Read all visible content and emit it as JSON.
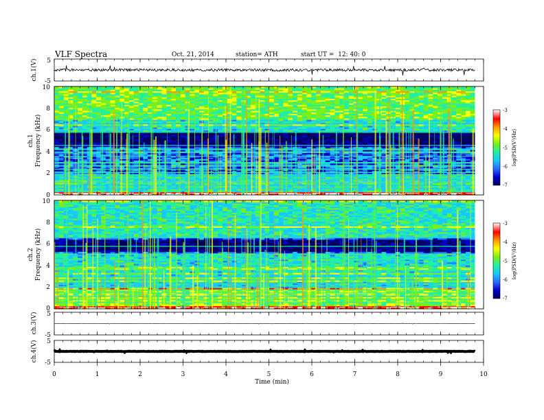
{
  "header": {
    "title": "VLF Spectra",
    "date": "Oct. 21, 2014",
    "station": "station= ATH",
    "start_time": "start UT =  12: 40: 0"
  },
  "x_axis": {
    "label": "Time (min)",
    "ticks": [
      "0",
      "1",
      "2",
      "3",
      "4",
      "5",
      "6",
      "7",
      "8",
      "9",
      "10"
    ]
  },
  "panels": {
    "ch1_wave": {
      "ylabel": "ch.1(V)",
      "ticks": [
        "5",
        "-5"
      ]
    },
    "ch1_spec": {
      "ylabel_top": "ch.1",
      "ylabel": "Frequency (kHz)",
      "ticks": [
        "10",
        "8",
        "6",
        "4",
        "2",
        "0"
      ]
    },
    "ch2_spec": {
      "ylabel_top": "ch.2",
      "ylabel": "Frequency (kHz)",
      "ticks": [
        "10",
        "8",
        "6",
        "4",
        "2",
        "0"
      ]
    },
    "ch3_wave": {
      "ylabel": "ch.3(V)",
      "ticks": [
        "5",
        "-5"
      ]
    },
    "ch4_wave": {
      "ylabel": "ch.4(V)",
      "ticks": [
        "5",
        "-5"
      ]
    }
  },
  "colorbar": {
    "label": "log(PSD(V²/Hz)",
    "ticks": [
      "-3",
      "-4",
      "-5",
      "-6",
      "-7"
    ]
  },
  "chart_data": {
    "type": "heatmap",
    "title": "VLF Spectra",
    "xlabel": "Time (min)",
    "xlim": [
      0,
      10
    ],
    "data_end_min": 9.8,
    "colormap": [
      "#000060",
      "#0000c8",
      "#2a6cff",
      "#19c8ff",
      "#22f0a0",
      "#7af019",
      "#ffff00",
      "#ff9a00",
      "#ff0000",
      "#ffffff"
    ],
    "clim": [
      -7,
      -3
    ],
    "channels": [
      {
        "name": "ch.1",
        "ylabel": "Frequency (kHz)",
        "ylim": [
          0,
          10
        ],
        "freq_band_logPSD": [
          {
            "f_kHz": [
              0,
              0.3
            ],
            "logPSD": -3.2
          },
          {
            "f_kHz": [
              0.3,
              2
            ],
            "logPSD": -5.3
          },
          {
            "f_kHz": [
              2,
              4.5
            ],
            "logPSD": -6.0
          },
          {
            "f_kHz": [
              4.5,
              5.8
            ],
            "logPSD": -6.8
          },
          {
            "f_kHz": [
              5.8,
              7
            ],
            "logPSD": -5.4
          },
          {
            "f_kHz": [
              7,
              10
            ],
            "logPSD": -4.9
          }
        ]
      },
      {
        "name": "ch.2",
        "ylabel": "Frequency (kHz)",
        "ylim": [
          0,
          10
        ],
        "freq_band_logPSD": [
          {
            "f_kHz": [
              0,
              0.3
            ],
            "logPSD": -3.5
          },
          {
            "f_kHz": [
              0.3,
              2
            ],
            "logPSD": -4.7
          },
          {
            "f_kHz": [
              2,
              5.2
            ],
            "logPSD": -5.4
          },
          {
            "f_kHz": [
              5.2,
              6.5
            ],
            "logPSD": -6.7
          },
          {
            "f_kHz": [
              6.5,
              10
            ],
            "logPSD": -5.3
          }
        ]
      }
    ],
    "waveforms": [
      {
        "name": "ch.1(V)",
        "ylim": [
          -5,
          5
        ],
        "amplitude_V": 1.0,
        "baseline_V": 0
      },
      {
        "name": "ch.3(V)",
        "ylim": [
          -5,
          5
        ],
        "amplitude_V": 0.1,
        "baseline_V": 0
      },
      {
        "name": "ch.4(V)",
        "ylim": [
          -5,
          5
        ],
        "amplitude_V": 0.15,
        "baseline_V": 0
      }
    ]
  }
}
